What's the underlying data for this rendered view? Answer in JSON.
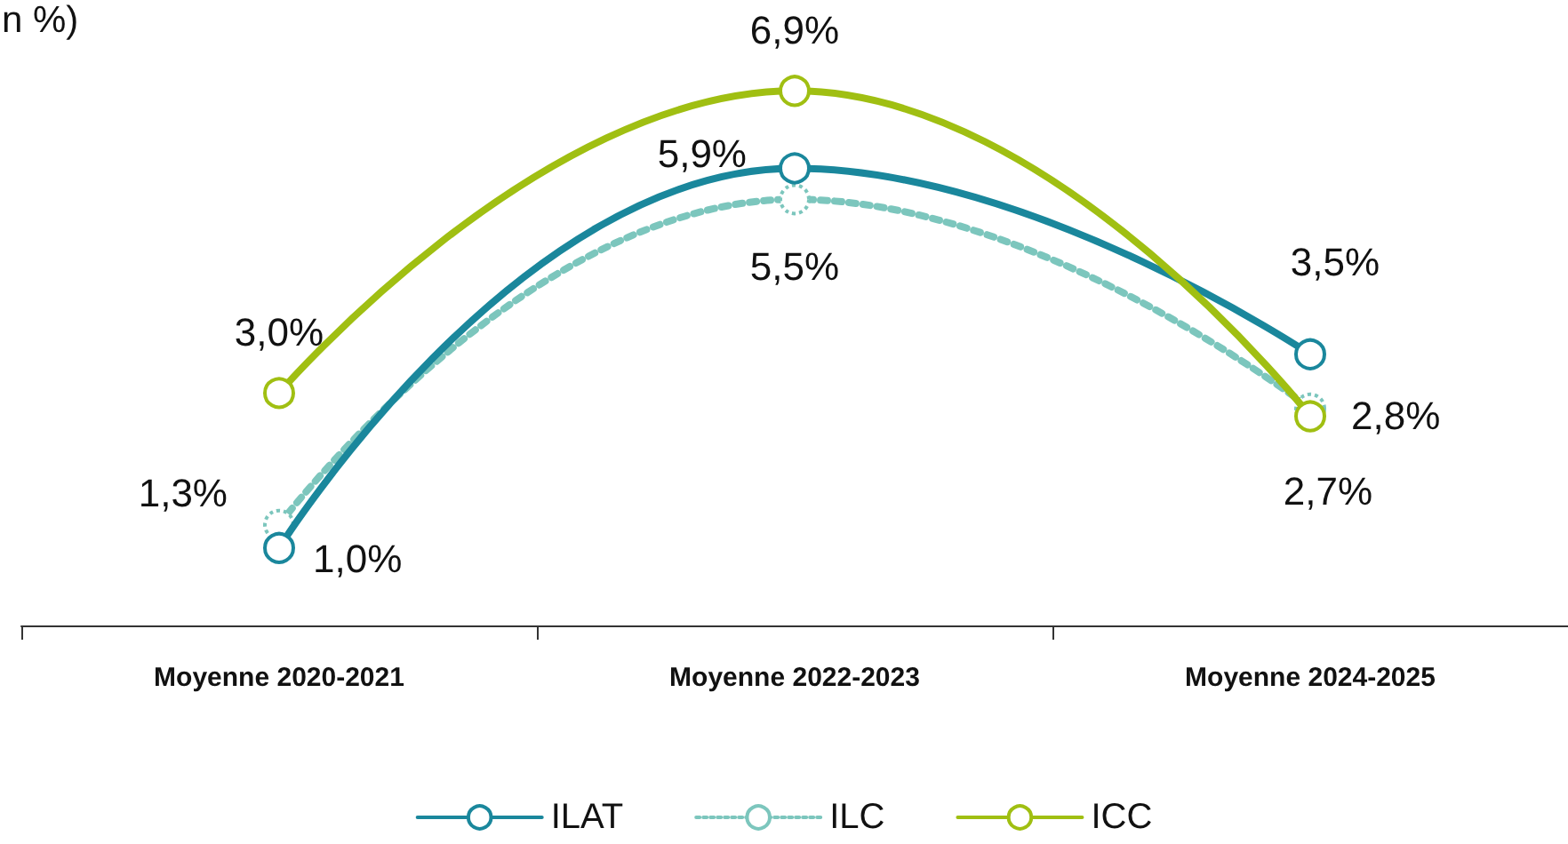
{
  "chart_data": {
    "type": "line",
    "title": "n %)",
    "categories": [
      "Moyenne 2020-2021",
      "Moyenne 2022-2023",
      "Moyenne 2024-2025"
    ],
    "series": [
      {
        "name": "ILAT",
        "color": "#1a879c",
        "values": [
          1.0,
          5.9,
          3.5
        ],
        "value_labels": [
          "1,0%",
          "5,9%",
          "3,5%"
        ],
        "line_style": "solid"
      },
      {
        "name": "ILC",
        "color": "#7cc6bd",
        "values": [
          1.3,
          5.5,
          2.8
        ],
        "value_labels": [
          "1,3%",
          "5,5%",
          "2,8%"
        ],
        "line_style": "dotted"
      },
      {
        "name": "ICC",
        "color": "#a0bf12",
        "values": [
          3.0,
          6.9,
          2.7
        ],
        "value_labels": [
          "3,0%",
          "6,9%",
          "2,7%"
        ],
        "line_style": "solid"
      }
    ],
    "tick_labels": "x",
    "grid": false,
    "legend": "bottom",
    "marker": "circle"
  }
}
